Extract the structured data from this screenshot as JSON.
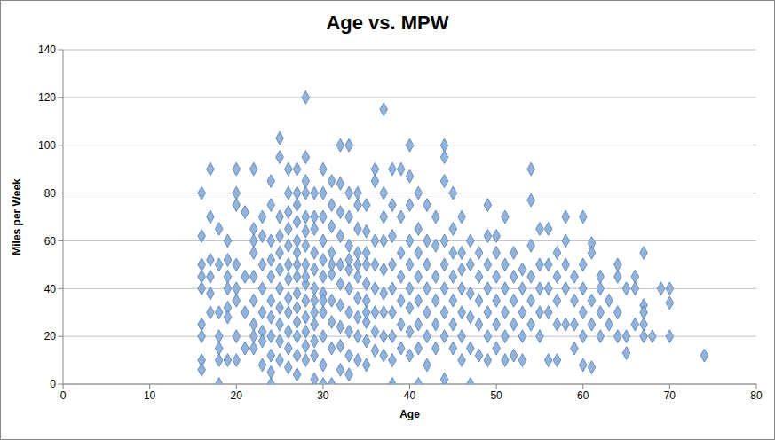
{
  "chart_data": {
    "type": "scatter",
    "title": "Age vs. MPW",
    "x_label": "Age",
    "y_label": "Miles per Week",
    "xlim": [
      0,
      80
    ],
    "xticks": [
      0,
      10,
      20,
      30,
      40,
      50,
      60,
      70,
      80
    ],
    "ylim": [
      0,
      140
    ],
    "yticks": [
      0,
      20,
      40,
      60,
      80,
      100,
      120,
      140
    ],
    "grid": true,
    "marker": "diamond",
    "color": "#95b3d7",
    "x": [
      16,
      16,
      16,
      16,
      16,
      16,
      16,
      16,
      16,
      17,
      17,
      17,
      17,
      17,
      17,
      18,
      18,
      18,
      18,
      18,
      18,
      18,
      19,
      19,
      19,
      19,
      19,
      19,
      19,
      20,
      20,
      20,
      20,
      20,
      20,
      20,
      20,
      21,
      21,
      21,
      21,
      22,
      22,
      22,
      22,
      22,
      22,
      22,
      22,
      22,
      23,
      23,
      23,
      23,
      23,
      23,
      23,
      23,
      24,
      24,
      24,
      24,
      24,
      24,
      24,
      24,
      24,
      24,
      24,
      25,
      25,
      25,
      25,
      25,
      25,
      25,
      25,
      25,
      25,
      25,
      26,
      26,
      26,
      26,
      26,
      26,
      26,
      26,
      26,
      26,
      26,
      26,
      27,
      27,
      27,
      27,
      27,
      27,
      27,
      27,
      27,
      27,
      27,
      27,
      27,
      28,
      28,
      28,
      28,
      28,
      28,
      28,
      28,
      28,
      28,
      28,
      28,
      28,
      28,
      29,
      29,
      29,
      29,
      29,
      29,
      29,
      29,
      29,
      29,
      29,
      30,
      30,
      30,
      30,
      30,
      30,
      30,
      30,
      30,
      30,
      30,
      31,
      31,
      31,
      31,
      31,
      31,
      31,
      31,
      31,
      32,
      32,
      32,
      32,
      32,
      32,
      32,
      32,
      32,
      32,
      33,
      33,
      33,
      33,
      33,
      33,
      33,
      33,
      33,
      33,
      34,
      34,
      34,
      34,
      34,
      34,
      34,
      34,
      34,
      35,
      35,
      35,
      35,
      35,
      35,
      35,
      35,
      35,
      36,
      36,
      37,
      37,
      37,
      37,
      37,
      37,
      37,
      37,
      37,
      36,
      36,
      36,
      36,
      36,
      36,
      38,
      38,
      38,
      38,
      38,
      38,
      38,
      38,
      38,
      39,
      39,
      39,
      39,
      39,
      39,
      39,
      40,
      40,
      40,
      40,
      40,
      40,
      40,
      40,
      40,
      41,
      41,
      41,
      41,
      41,
      41,
      41,
      41,
      42,
      42,
      42,
      42,
      42,
      42,
      42,
      43,
      43,
      43,
      43,
      43,
      43,
      44,
      44,
      44,
      44,
      44,
      44,
      44,
      44,
      44,
      45,
      45,
      45,
      45,
      45,
      45,
      45,
      46,
      46,
      46,
      46,
      46,
      46,
      46,
      47,
      47,
      47,
      47,
      47,
      47,
      48,
      48,
      48,
      48,
      48,
      49,
      49,
      49,
      49,
      49,
      49,
      49,
      50,
      50,
      50,
      50,
      50,
      50,
      51,
      51,
      51,
      51,
      51,
      51,
      52,
      52,
      52,
      52,
      52,
      53,
      53,
      53,
      53,
      53,
      54,
      54,
      54,
      54,
      54,
      54,
      55,
      55,
      55,
      55,
      55,
      56,
      56,
      56,
      56,
      56,
      57,
      57,
      57,
      57,
      57,
      58,
      58,
      58,
      58,
      58,
      59,
      59,
      59,
      59,
      60,
      60,
      60,
      60,
      60,
      60,
      61,
      61,
      61,
      61,
      61,
      62,
      62,
      62,
      62,
      63,
      63,
      64,
      64,
      64,
      64,
      65,
      65,
      65,
      66,
      66,
      66,
      67,
      67,
      67,
      67,
      67,
      68,
      69,
      70,
      70,
      70,
      74,
      34,
      35,
      31,
      33,
      30,
      29,
      28,
      27
    ],
    "values": [
      80,
      62,
      50,
      45,
      40,
      25,
      20,
      10,
      6,
      90,
      70,
      52,
      45,
      30,
      38,
      65,
      50,
      30,
      20,
      15,
      10,
      0,
      60,
      52,
      45,
      40,
      32,
      28,
      10,
      90,
      80,
      75,
      50,
      40,
      35,
      20,
      10,
      72,
      45,
      30,
      15,
      65,
      60,
      55,
      45,
      35,
      25,
      20,
      15,
      90,
      70,
      62,
      50,
      40,
      30,
      22,
      18,
      8,
      85,
      75,
      60,
      52,
      45,
      35,
      28,
      20,
      12,
      5,
      0,
      103,
      95,
      70,
      62,
      55,
      48,
      40,
      32,
      25,
      18,
      10,
      90,
      80,
      72,
      65,
      58,
      50,
      44,
      36,
      30,
      22,
      15,
      7,
      90,
      80,
      75,
      68,
      60,
      55,
      45,
      38,
      32,
      26,
      20,
      12,
      4,
      120,
      95,
      85,
      80,
      70,
      64,
      58,
      50,
      42,
      35,
      28,
      22,
      16,
      10,
      2,
      80,
      70,
      65,
      55,
      48,
      40,
      30,
      25,
      18,
      12,
      90,
      80,
      70,
      60,
      52,
      45,
      38,
      30,
      20,
      0,
      8,
      85,
      75,
      66,
      55,
      46,
      35,
      26,
      15,
      0,
      100,
      84,
      72,
      62,
      50,
      42,
      33,
      24,
      16,
      6,
      100,
      80,
      70,
      58,
      48,
      40,
      30,
      22,
      12,
      4,
      80,
      75,
      65,
      55,
      45,
      36,
      28,
      20,
      10,
      75,
      64,
      55,
      50,
      42,
      35,
      26,
      18,
      8,
      90,
      85,
      115,
      80,
      70,
      60,
      48,
      38,
      30,
      20,
      12,
      60,
      50,
      40,
      30,
      22,
      14,
      90,
      75,
      62,
      50,
      40,
      30,
      20,
      10,
      0,
      90,
      70,
      55,
      45,
      35,
      25,
      15,
      100,
      87,
      75,
      60,
      50,
      40,
      32,
      22,
      12,
      80,
      65,
      55,
      45,
      35,
      25,
      15,
      0,
      75,
      60,
      50,
      40,
      30,
      20,
      8,
      70,
      58,
      45,
      35,
      25,
      15,
      100,
      95,
      85,
      60,
      50,
      40,
      30,
      20,
      2,
      80,
      65,
      55,
      45,
      35,
      25,
      15,
      70,
      55,
      48,
      40,
      30,
      20,
      10,
      60,
      50,
      38,
      28,
      15,
      0,
      55,
      45,
      35,
      25,
      12,
      75,
      62,
      50,
      40,
      30,
      20,
      10,
      62,
      55,
      45,
      35,
      25,
      15,
      70,
      50,
      40,
      30,
      20,
      10,
      55,
      45,
      35,
      25,
      12,
      48,
      40,
      30,
      20,
      10,
      90,
      77,
      58,
      45,
      35,
      25,
      65,
      50,
      40,
      30,
      20,
      65,
      50,
      40,
      30,
      10,
      55,
      45,
      35,
      25,
      10,
      70,
      60,
      50,
      40,
      25,
      45,
      35,
      25,
      15,
      70,
      50,
      40,
      30,
      20,
      8,
      59,
      55,
      35,
      25,
      7,
      45,
      40,
      30,
      20,
      35,
      25,
      50,
      45,
      30,
      20,
      40,
      20,
      13,
      45,
      40,
      25,
      55,
      33,
      30,
      25,
      20,
      20,
      40,
      40,
      34,
      20,
      12,
      50,
      30,
      50,
      52,
      35,
      35,
      45,
      50
    ]
  }
}
